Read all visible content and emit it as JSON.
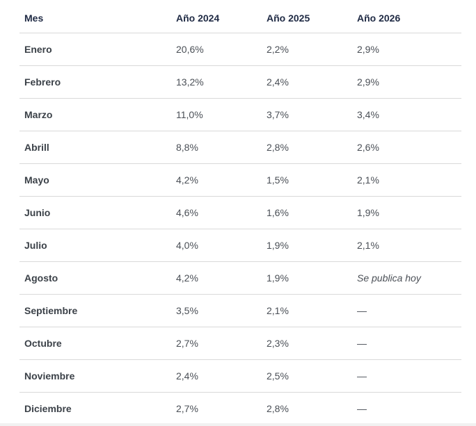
{
  "table": {
    "headers": [
      "Mes",
      "Año 2024",
      "Año 2025",
      "Año 2026"
    ],
    "rows": [
      [
        "Enero",
        "20,6%",
        "2,2%",
        "2,9%"
      ],
      [
        "Febrero",
        "13,2%",
        "2,4%",
        "2,9%"
      ],
      [
        "Marzo",
        "11,0%",
        "3,7%",
        "3,4%"
      ],
      [
        "Abrill",
        "8,8%",
        "2,8%",
        "2,6%"
      ],
      [
        "Mayo",
        "4,2%",
        "1,5%",
        "2,1%"
      ],
      [
        "Junio",
        "4,6%",
        "1,6%",
        "1,9%"
      ],
      [
        "Julio",
        "4,0%",
        "1,9%",
        "2,1%"
      ],
      [
        "Agosto",
        "4,2%",
        "1,9%",
        "Se publica hoy"
      ],
      [
        "Septiembre",
        "3,5%",
        "2,1%",
        "—"
      ],
      [
        "Octubre",
        "2,7%",
        "2,3%",
        "—"
      ],
      [
        "Noviembre",
        "2,4%",
        "2,5%",
        "—"
      ],
      [
        "Diciembre",
        "2,7%",
        "2,8%",
        "—"
      ]
    ]
  }
}
